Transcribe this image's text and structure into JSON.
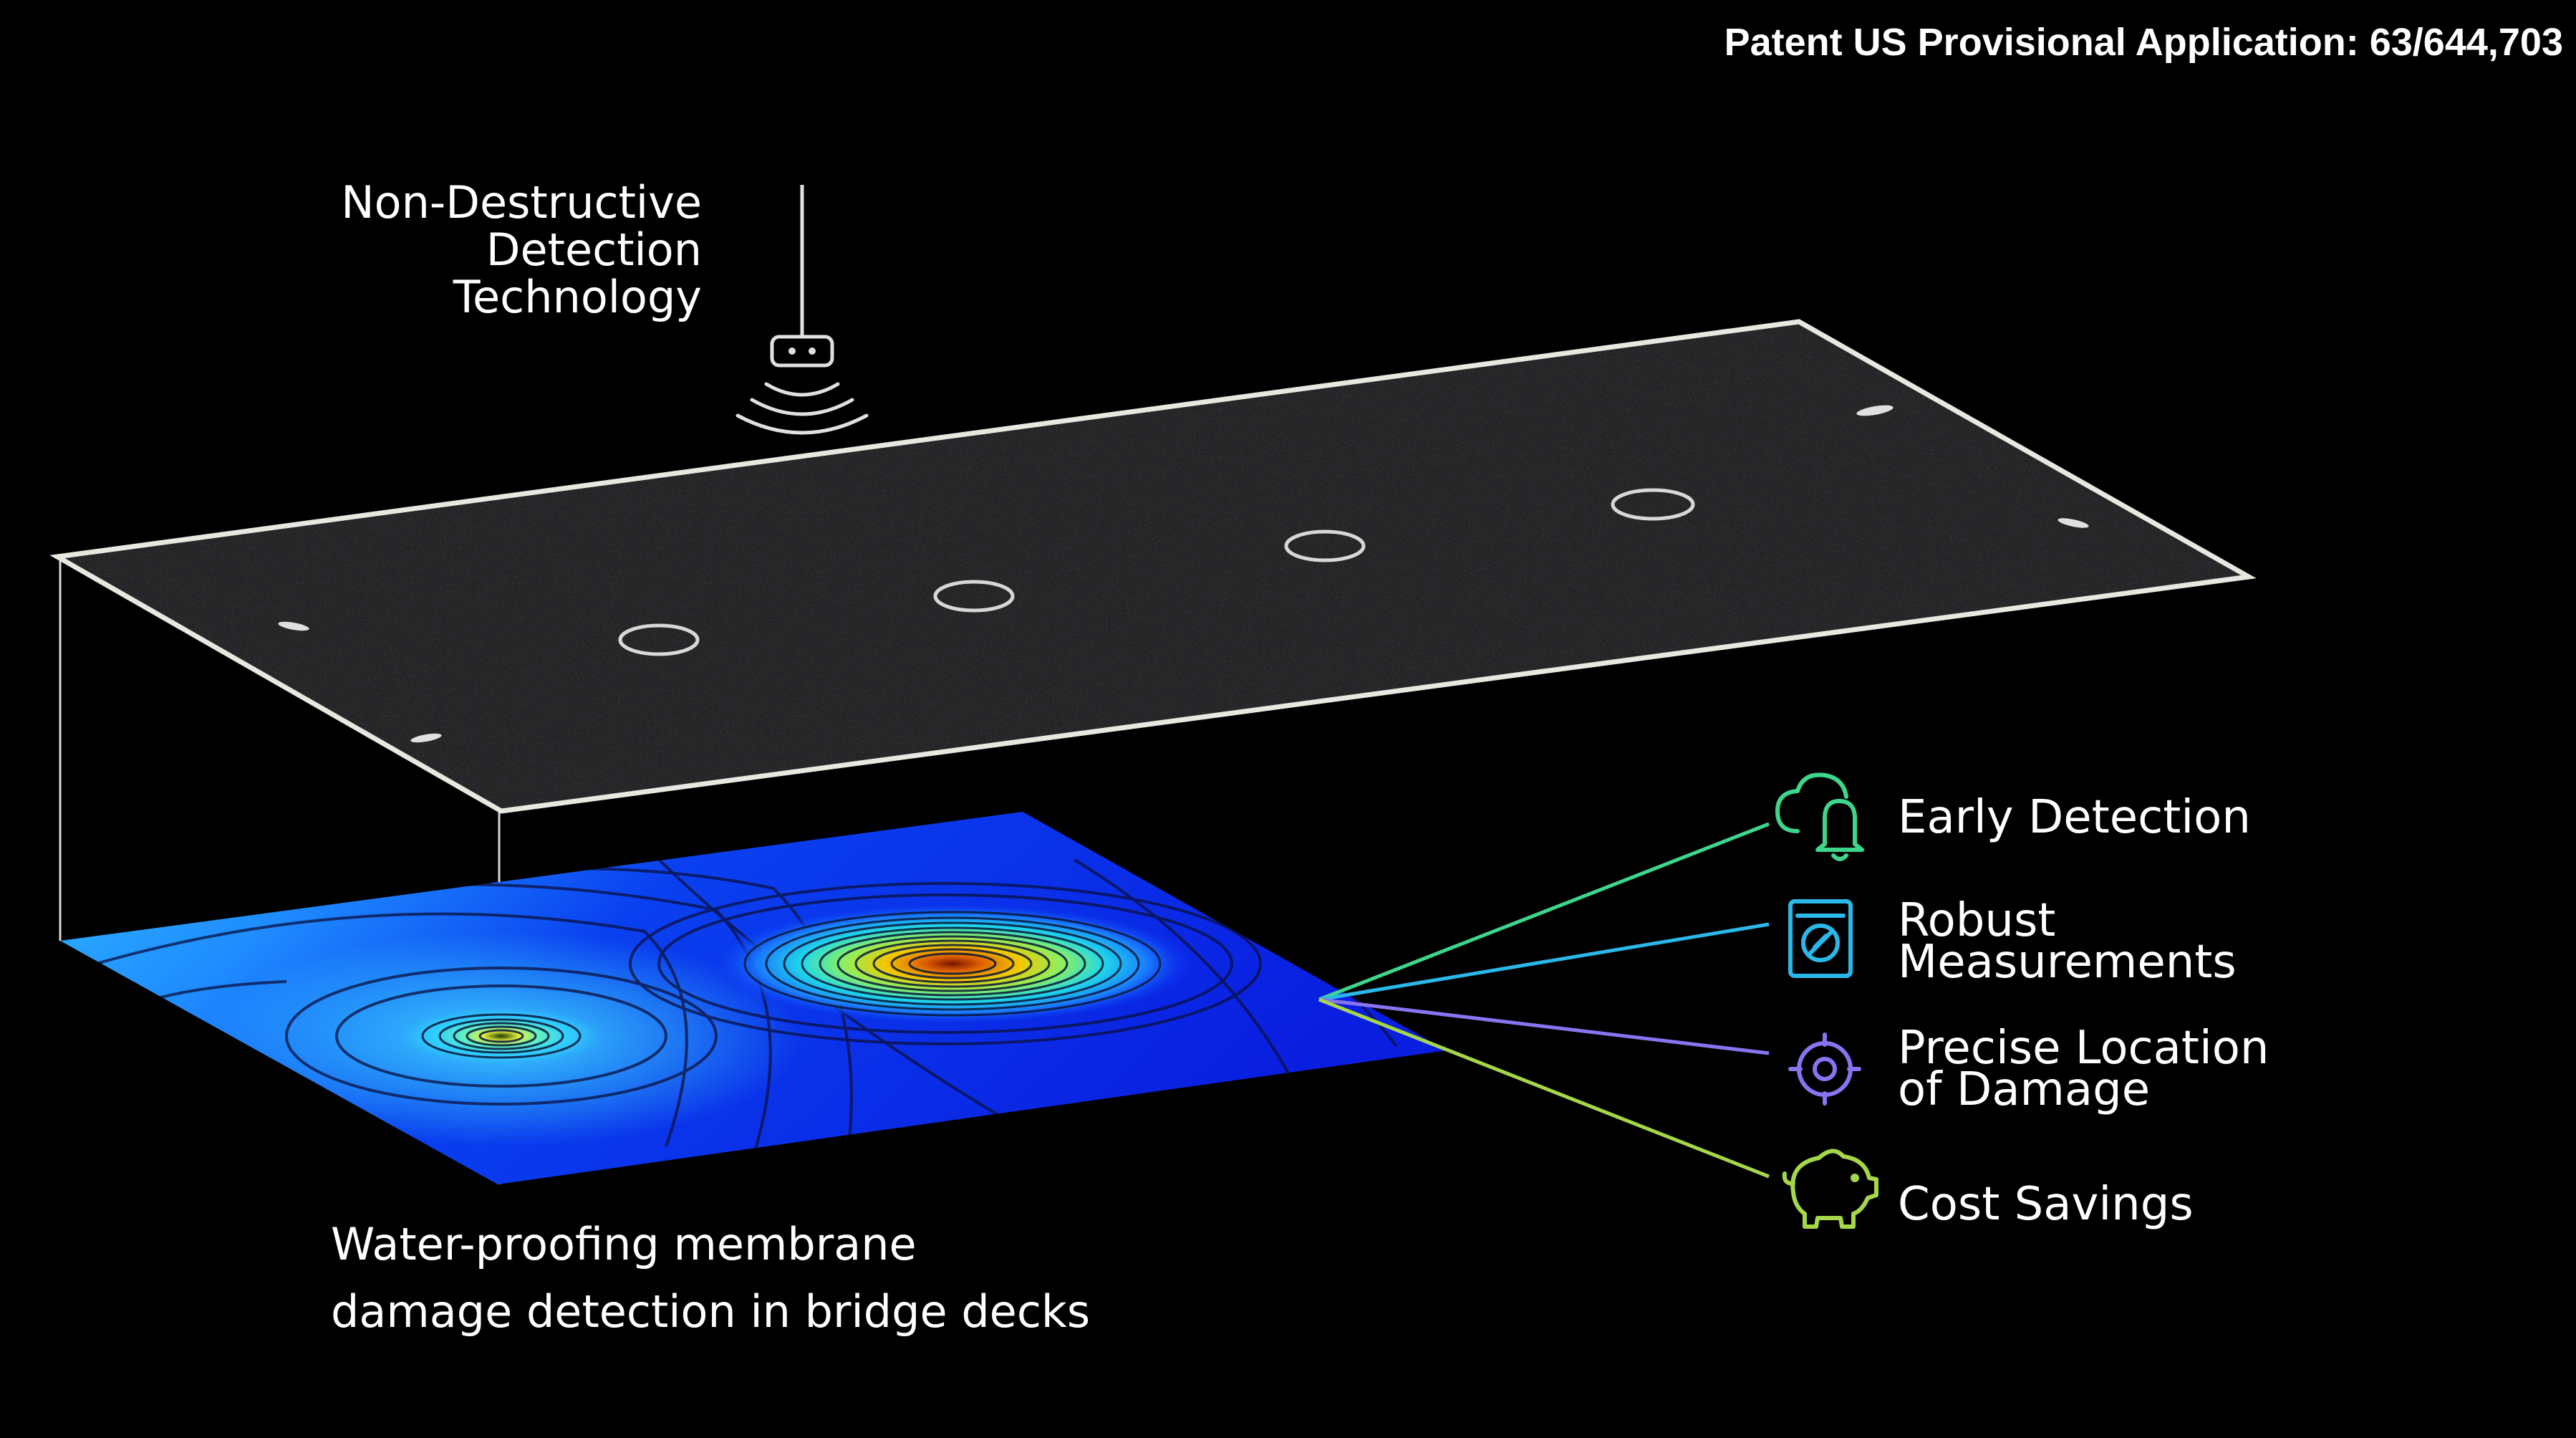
{
  "patent_text": "Patent US Provisional Application: 63/644,703",
  "technology_label": [
    "Non-Destructive",
    "Detection",
    "Technology"
  ],
  "caption": [
    "Water-proofing membrane",
    "damage detection in bridge decks"
  ],
  "benefits": [
    {
      "lines": [
        "Early Detection"
      ],
      "icon": "cloud-bell-icon",
      "color": "#3dd68c"
    },
    {
      "lines": [
        "Robust",
        "Measurements"
      ],
      "icon": "gauge-card-icon",
      "color": "#2bb8e8"
    },
    {
      "lines": [
        "Precise Location",
        "of Damage"
      ],
      "icon": "target-icon",
      "color": "#8a73f0"
    },
    {
      "lines": [
        "Cost Savings"
      ],
      "icon": "piggy-bank-icon",
      "color": "#a6d64a"
    }
  ],
  "colors": {
    "background": "#000000",
    "deck_surface": "#2a2a2c",
    "deck_edge": "#e8e8e0",
    "membrane_base": "#0a2cf0",
    "membrane_light": "#2fb8ff",
    "hotspot": "#c84a00"
  }
}
